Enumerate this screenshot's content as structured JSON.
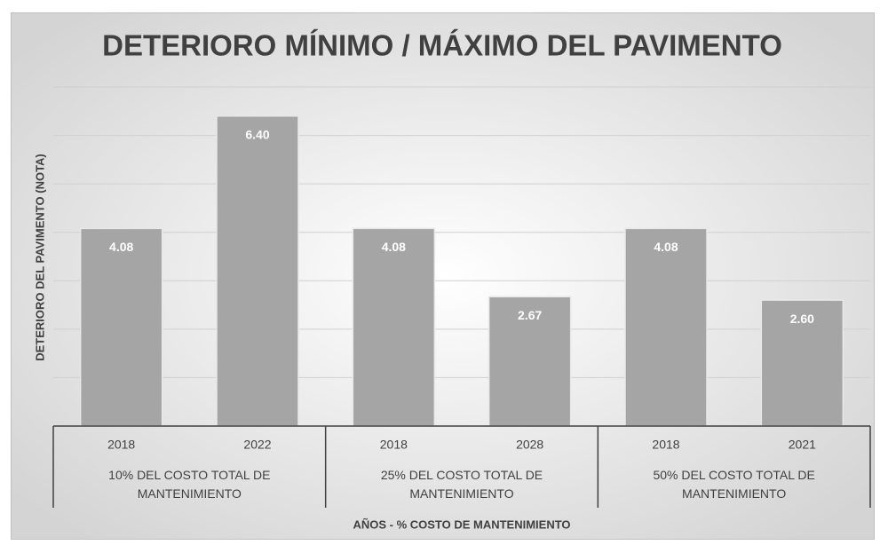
{
  "chart_data": {
    "type": "bar",
    "title": "DETERIORO MÍNIMO / MÁXIMO DEL PAVIMENTO",
    "ylabel": "DETERIORO DEL PAVIMENTO (NOTA)",
    "xlabel": "AÑOS - % COSTO DE MANTENIMIENTO",
    "categories": [
      "2018",
      "2022",
      "2018",
      "2028",
      "2018",
      "2021"
    ],
    "groups": [
      "10% DEL COSTO TOTAL DE MANTENIMIENTO",
      "25% DEL COSTO TOTAL DE MANTENIMIENTO",
      "50% DEL COSTO TOTAL DE MANTENIMIENTO"
    ],
    "values": [
      4.08,
      6.4,
      4.08,
      2.67,
      4.08,
      2.6
    ],
    "value_labels": [
      "4.08",
      "6.40",
      "4.08",
      "2.67",
      "4.08",
      "2.60"
    ],
    "color": "#a5a5a5",
    "ylim": [
      0,
      7
    ],
    "yticks": [
      0,
      1,
      2,
      3,
      4,
      5,
      6,
      7
    ],
    "grid": true
  }
}
